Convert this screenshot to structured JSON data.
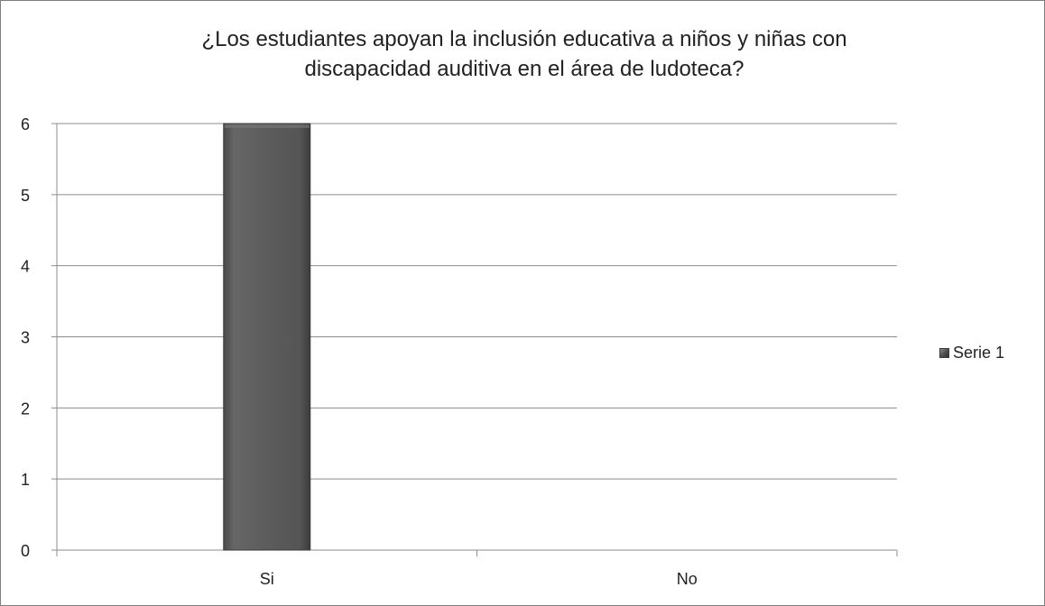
{
  "chart_data": {
    "type": "bar",
    "title": "¿Los estudiantes apoyan la inclusión educativa a niños y niñas con discapacidad auditiva en el área de ludoteca?",
    "title_lines": [
      "¿Los estudiantes apoyan la inclusión educativa a niños y niñas con",
      "discapacidad auditiva en el área de ludoteca?"
    ],
    "categories": [
      "Si",
      "No"
    ],
    "series": [
      {
        "name": "Serie 1",
        "values": [
          6,
          0
        ],
        "color": "#595959"
      }
    ],
    "yticks": [
      0,
      1,
      2,
      3,
      4,
      5,
      6
    ],
    "ylim": [
      0,
      6
    ],
    "grid": true,
    "legend": "right",
    "xlabel": "",
    "ylabel": ""
  }
}
